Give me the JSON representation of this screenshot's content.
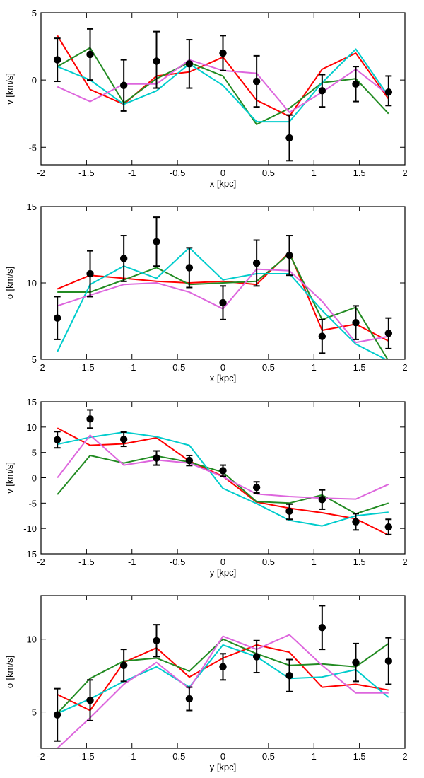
{
  "chart_data": [
    {
      "type": "line",
      "xlabel": "x [kpc]",
      "ylabel": "v [km/s]",
      "xlim": [
        -2,
        2
      ],
      "ylim": [
        -6.3,
        5
      ],
      "xticks": [
        -2,
        -1.5,
        -1,
        -0.5,
        0,
        0.5,
        1,
        1.5,
        2
      ],
      "yticks": [
        -5,
        0,
        5
      ],
      "x": [
        -1.82,
        -1.46,
        -1.09,
        -0.73,
        -0.37,
        0,
        0.37,
        0.73,
        1.09,
        1.46,
        1.82
      ],
      "points": {
        "y": [
          1.5,
          1.9,
          -0.4,
          1.4,
          1.2,
          2.0,
          -0.1,
          -4.3,
          -0.8,
          -0.3,
          -0.9
        ],
        "err_low": [
          1.6,
          1.9,
          1.9,
          2.0,
          1.8,
          1.3,
          1.9,
          1.7,
          1.2,
          1.3,
          1.0
        ],
        "err_high": [
          1.6,
          1.9,
          1.9,
          2.2,
          1.8,
          1.3,
          1.9,
          1.7,
          1.2,
          1.3,
          1.2
        ]
      },
      "series": [
        {
          "color": "#ff0000",
          "values": [
            3.3,
            -0.7,
            -1.8,
            0.3,
            0.6,
            1.7,
            -1.5,
            -2.7,
            0.8,
            2.0,
            -1.4
          ]
        },
        {
          "color": "#228b22",
          "values": [
            1.0,
            2.4,
            -1.7,
            0.1,
            1.3,
            0.3,
            -3.3,
            -2.1,
            -0.2,
            0.1,
            -2.5
          ]
        },
        {
          "color": "#00cccc",
          "values": [
            1.0,
            0.0,
            -1.8,
            -0.8,
            1.2,
            -0.4,
            -3.1,
            -3.1,
            -0.2,
            2.3,
            -1.2
          ]
        },
        {
          "color": "#dd66dd",
          "values": [
            -0.5,
            -1.6,
            -0.3,
            -0.3,
            1.5,
            0.7,
            0.5,
            -2.4,
            -0.9,
            0.8,
            -1.1
          ]
        }
      ]
    },
    {
      "type": "line",
      "xlabel": "x [kpc]",
      "ylabel": "σ [km/s]",
      "xlim": [
        -2,
        2
      ],
      "ylim": [
        5,
        15
      ],
      "xticks": [
        -2,
        -1.5,
        -1,
        -0.5,
        0,
        0.5,
        1,
        1.5,
        2
      ],
      "yticks": [
        5,
        10,
        15
      ],
      "x": [
        -1.82,
        -1.46,
        -1.09,
        -0.73,
        -0.37,
        0,
        0.37,
        0.73,
        1.09,
        1.46,
        1.82
      ],
      "points": {
        "y": [
          7.7,
          10.6,
          11.6,
          12.7,
          11.0,
          8.7,
          11.3,
          11.8,
          6.5,
          7.4,
          6.7
        ],
        "err_low": [
          1.4,
          1.5,
          1.5,
          1.6,
          1.3,
          1.1,
          1.5,
          1.3,
          1.1,
          1.1,
          1.0
        ],
        "err_high": [
          1.4,
          1.5,
          1.5,
          1.6,
          1.3,
          1.1,
          1.5,
          1.3,
          1.1,
          1.1,
          1.0
        ]
      },
      "series": [
        {
          "color": "#ff0000",
          "values": [
            9.6,
            10.5,
            10.3,
            10.1,
            10.0,
            10.1,
            9.9,
            12.0,
            6.9,
            7.3,
            6.2
          ]
        },
        {
          "color": "#228b22",
          "values": [
            9.4,
            9.4,
            10.2,
            11.0,
            9.9,
            10.0,
            10.1,
            11.9,
            7.6,
            8.4,
            4.9
          ]
        },
        {
          "color": "#00cccc",
          "values": [
            5.5,
            9.9,
            11.1,
            10.3,
            12.3,
            10.2,
            10.6,
            10.6,
            8.2,
            6.0,
            4.9
          ]
        },
        {
          "color": "#dd66dd",
          "values": [
            8.5,
            9.2,
            9.9,
            10.0,
            9.4,
            8.3,
            10.9,
            10.8,
            8.8,
            6.1,
            6.5
          ]
        }
      ]
    },
    {
      "type": "line",
      "xlabel": "y [kpc]",
      "ylabel": "v [km/s]",
      "xlim": [
        -2,
        2
      ],
      "ylim": [
        -15,
        15
      ],
      "xticks": [
        -2,
        -1.5,
        -1,
        -0.5,
        0,
        0.5,
        1,
        1.5,
        2
      ],
      "yticks": [
        -15,
        -10,
        -5,
        0,
        5,
        10,
        15
      ],
      "x": [
        -1.82,
        -1.46,
        -1.09,
        -0.73,
        -0.37,
        0,
        0.37,
        0.73,
        1.09,
        1.46,
        1.82
      ],
      "points": {
        "y": [
          7.5,
          11.6,
          7.6,
          3.9,
          3.4,
          1.4,
          -1.9,
          -6.6,
          -4.3,
          -8.7,
          -9.7
        ],
        "err_low": [
          1.6,
          1.8,
          1.4,
          1.4,
          1.0,
          1.1,
          1.1,
          1.6,
          1.9,
          1.6,
          1.5
        ],
        "err_high": [
          1.6,
          1.8,
          1.4,
          1.4,
          1.0,
          1.1,
          1.1,
          1.4,
          1.9,
          1.6,
          1.5
        ]
      },
      "series": [
        {
          "color": "#ff0000",
          "values": [
            9.8,
            6.4,
            6.7,
            7.9,
            3.3,
            0.3,
            -4.8,
            -6.0,
            -6.9,
            -8.1,
            -11.3
          ]
        },
        {
          "color": "#228b22",
          "values": [
            -3.3,
            4.4,
            2.9,
            4.3,
            3.1,
            1.1,
            -4.7,
            -5.0,
            -3.4,
            -7.1,
            -5.0
          ]
        },
        {
          "color": "#00cccc",
          "values": [
            6.6,
            8.0,
            9.0,
            8.1,
            6.4,
            -2.1,
            -5.1,
            -8.4,
            -9.5,
            -7.5,
            -6.8
          ]
        },
        {
          "color": "#dd66dd",
          "values": [
            0.0,
            8.4,
            2.5,
            3.5,
            2.9,
            0.2,
            -3.2,
            -3.7,
            -4.0,
            -4.2,
            -1.3
          ]
        }
      ]
    },
    {
      "type": "line",
      "xlabel": "y [kpc]",
      "ylabel": "σ [km/s]",
      "xlim": [
        -2,
        2
      ],
      "ylim": [
        2.5,
        13
      ],
      "xticks": [
        -2,
        -1.5,
        -1,
        -0.5,
        0,
        0.5,
        1,
        1.5,
        2
      ],
      "yticks": [
        5,
        10
      ],
      "x": [
        -1.82,
        -1.46,
        -1.09,
        -0.73,
        -0.37,
        0,
        0.37,
        0.73,
        1.09,
        1.46,
        1.82
      ],
      "points": {
        "y": [
          4.8,
          5.8,
          8.2,
          9.9,
          5.9,
          8.1,
          8.8,
          7.5,
          10.8,
          8.4,
          8.5
        ],
        "err_low": [
          1.8,
          1.4,
          1.1,
          1.1,
          0.8,
          0.9,
          1.1,
          1.1,
          1.5,
          1.3,
          1.6
        ],
        "err_high": [
          1.8,
          1.4,
          1.1,
          1.1,
          0.8,
          0.9,
          1.1,
          1.1,
          1.5,
          1.3,
          1.6
        ]
      },
      "series": [
        {
          "color": "#ff0000",
          "values": [
            6.2,
            5.1,
            8.4,
            9.4,
            7.4,
            8.7,
            9.6,
            9.1,
            6.7,
            6.9,
            6.5
          ]
        },
        {
          "color": "#228b22",
          "values": [
            4.9,
            7.3,
            8.5,
            8.7,
            7.8,
            10.0,
            9.0,
            8.2,
            8.3,
            8.1,
            9.7
          ]
        },
        {
          "color": "#00cccc",
          "values": [
            4.9,
            5.9,
            7.1,
            8.1,
            6.7,
            9.6,
            8.8,
            7.3,
            7.4,
            7.9,
            6.0
          ]
        },
        {
          "color": "#dd66dd",
          "values": [
            2.5,
            4.6,
            6.9,
            8.4,
            6.6,
            10.2,
            9.3,
            10.3,
            8.2,
            6.3,
            6.3
          ]
        }
      ]
    }
  ]
}
